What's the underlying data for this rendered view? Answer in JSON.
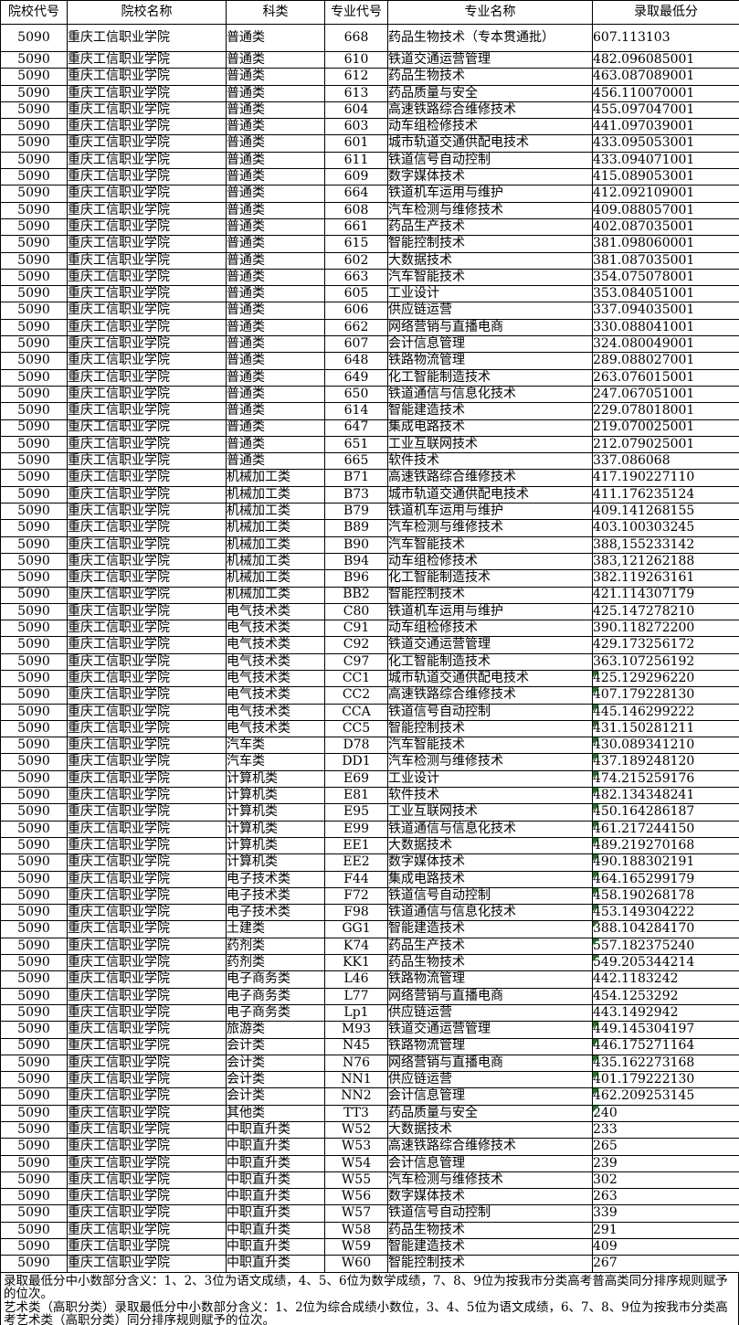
{
  "colors": {
    "grid": "#000000",
    "flag_green": "#107c10",
    "background": "#ffffff",
    "text": "#000000"
  },
  "table": {
    "headers": [
      "院校代号",
      "院校名称",
      "科类",
      "专业代号",
      "专业名称",
      "录取最低分"
    ],
    "rows": [
      {
        "code": "5090",
        "school": "重庆工信职业学院",
        "category": "普通类",
        "major_code": "668",
        "major": "药品生物技术（专本贯通批）",
        "score": "607.113103",
        "flag": false
      },
      {
        "code": "5090",
        "school": "重庆工信职业学院",
        "category": "普通类",
        "major_code": "610",
        "major": "铁道交通运营管理",
        "score": "482.096085001",
        "flag": false
      },
      {
        "code": "5090",
        "school": "重庆工信职业学院",
        "category": "普通类",
        "major_code": "612",
        "major": "药品生物技术",
        "score": "463.087089001",
        "flag": false
      },
      {
        "code": "5090",
        "school": "重庆工信职业学院",
        "category": "普通类",
        "major_code": "613",
        "major": "药品质量与安全",
        "score": "456.110070001",
        "flag": false
      },
      {
        "code": "5090",
        "school": "重庆工信职业学院",
        "category": "普通类",
        "major_code": "604",
        "major": "高速铁路综合维修技术",
        "score": "455.097047001",
        "flag": false
      },
      {
        "code": "5090",
        "school": "重庆工信职业学院",
        "category": "普通类",
        "major_code": "603",
        "major": "动车组检修技术",
        "score": "441.097039001",
        "flag": false
      },
      {
        "code": "5090",
        "school": "重庆工信职业学院",
        "category": "普通类",
        "major_code": "601",
        "major": "城市轨道交通供配电技术",
        "score": "433.095053001",
        "flag": false
      },
      {
        "code": "5090",
        "school": "重庆工信职业学院",
        "category": "普通类",
        "major_code": "611",
        "major": "铁道信号自动控制",
        "score": "433.094071001",
        "flag": false
      },
      {
        "code": "5090",
        "school": "重庆工信职业学院",
        "category": "普通类",
        "major_code": "609",
        "major": "数字媒体技术",
        "score": "415.089053001",
        "flag": false
      },
      {
        "code": "5090",
        "school": "重庆工信职业学院",
        "category": "普通类",
        "major_code": "664",
        "major": "铁道机车运用与维护",
        "score": "412.092109001",
        "flag": false
      },
      {
        "code": "5090",
        "school": "重庆工信职业学院",
        "category": "普通类",
        "major_code": "608",
        "major": "汽车检测与维修技术",
        "score": "409.088057001",
        "flag": false
      },
      {
        "code": "5090",
        "school": "重庆工信职业学院",
        "category": "普通类",
        "major_code": "661",
        "major": "药品生产技术",
        "score": "402.087035001",
        "flag": false
      },
      {
        "code": "5090",
        "school": "重庆工信职业学院",
        "category": "普通类",
        "major_code": "615",
        "major": "智能控制技术",
        "score": "381.098060001",
        "flag": false
      },
      {
        "code": "5090",
        "school": "重庆工信职业学院",
        "category": "普通类",
        "major_code": "602",
        "major": "大数据技术",
        "score": "381.087035001",
        "flag": false
      },
      {
        "code": "5090",
        "school": "重庆工信职业学院",
        "category": "普通类",
        "major_code": "663",
        "major": "汽车智能技术",
        "score": "354.075078001",
        "flag": false
      },
      {
        "code": "5090",
        "school": "重庆工信职业学院",
        "category": "普通类",
        "major_code": "605",
        "major": "工业设计",
        "score": "353.084051001",
        "flag": false
      },
      {
        "code": "5090",
        "school": "重庆工信职业学院",
        "category": "普通类",
        "major_code": "606",
        "major": "供应链运营",
        "score": "337.094035001",
        "flag": false
      },
      {
        "code": "5090",
        "school": "重庆工信职业学院",
        "category": "普通类",
        "major_code": "662",
        "major": "网络营销与直播电商",
        "score": "330.088041001",
        "flag": false
      },
      {
        "code": "5090",
        "school": "重庆工信职业学院",
        "category": "普通类",
        "major_code": "607",
        "major": "会计信息管理",
        "score": "324.080049001",
        "flag": false
      },
      {
        "code": "5090",
        "school": "重庆工信职业学院",
        "category": "普通类",
        "major_code": "648",
        "major": "铁路物流管理",
        "score": "289.088027001",
        "flag": false
      },
      {
        "code": "5090",
        "school": "重庆工信职业学院",
        "category": "普通类",
        "major_code": "649",
        "major": "化工智能制造技术",
        "score": "263.076015001",
        "flag": false
      },
      {
        "code": "5090",
        "school": "重庆工信职业学院",
        "category": "普通类",
        "major_code": "650",
        "major": "铁道通信与信息化技术",
        "score": "247.067051001",
        "flag": false
      },
      {
        "code": "5090",
        "school": "重庆工信职业学院",
        "category": "普通类",
        "major_code": "614",
        "major": "智能建造技术",
        "score": "229.078018001",
        "flag": false
      },
      {
        "code": "5090",
        "school": "重庆工信职业学院",
        "category": "普通类",
        "major_code": "647",
        "major": "集成电路技术",
        "score": "219.070025001",
        "flag": false
      },
      {
        "code": "5090",
        "school": "重庆工信职业学院",
        "category": "普通类",
        "major_code": "651",
        "major": "工业互联网技术",
        "score": "212.079025001",
        "flag": false
      },
      {
        "code": "5090",
        "school": "重庆工信职业学院",
        "category": "普通类",
        "major_code": "665",
        "major": "软件技术",
        "score": "337.086068",
        "flag": false
      },
      {
        "code": "5090",
        "school": "重庆工信职业学院",
        "category": "机械加工类",
        "major_code": "B71",
        "major": "高速铁路综合维修技术",
        "score": "417.190227110",
        "flag": false
      },
      {
        "code": "5090",
        "school": "重庆工信职业学院",
        "category": "机械加工类",
        "major_code": "B73",
        "major": "城市轨道交通供配电技术",
        "score": "411.176235124",
        "flag": false
      },
      {
        "code": "5090",
        "school": "重庆工信职业学院",
        "category": "机械加工类",
        "major_code": "B79",
        "major": "铁道机车运用与维护",
        "score": "409.141268155",
        "flag": false
      },
      {
        "code": "5090",
        "school": "重庆工信职业学院",
        "category": "机械加工类",
        "major_code": "B89",
        "major": "汽车检测与维修技术",
        "score": "403.100303245",
        "flag": false
      },
      {
        "code": "5090",
        "school": "重庆工信职业学院",
        "category": "机械加工类",
        "major_code": "B90",
        "major": "汽车智能技术",
        "score": "388,155233142",
        "flag": false
      },
      {
        "code": "5090",
        "school": "重庆工信职业学院",
        "category": "机械加工类",
        "major_code": "B94",
        "major": "动车组检修技术",
        "score": "383,121262188",
        "flag": false
      },
      {
        "code": "5090",
        "school": "重庆工信职业学院",
        "category": "机械加工类",
        "major_code": "B96",
        "major": "化工智能制造技术",
        "score": "382.119263161",
        "flag": false
      },
      {
        "code": "5090",
        "school": "重庆工信职业学院",
        "category": "机械加工类",
        "major_code": "BB2",
        "major": "智能控制技术",
        "score": "421.114307179",
        "flag": false
      },
      {
        "code": "5090",
        "school": "重庆工信职业学院",
        "category": "电气技术类",
        "major_code": "C80",
        "major": "铁道机车运用与维护",
        "score": "425.147278210",
        "flag": false
      },
      {
        "code": "5090",
        "school": "重庆工信职业学院",
        "category": "电气技术类",
        "major_code": "C91",
        "major": "动车组检修技术",
        "score": "390.118272200",
        "flag": false
      },
      {
        "code": "5090",
        "school": "重庆工信职业学院",
        "category": "电气技术类",
        "major_code": "C92",
        "major": "铁道交通运营管理",
        "score": "429.173256172",
        "flag": false
      },
      {
        "code": "5090",
        "school": "重庆工信职业学院",
        "category": "电气技术类",
        "major_code": "C97",
        "major": "化工智能制造技术",
        "score": "363.107256192",
        "flag": false
      },
      {
        "code": "5090",
        "school": "重庆工信职业学院",
        "category": "电气技术类",
        "major_code": "CC1",
        "major": "城市轨道交通供配电技术",
        "score": "425.129296220",
        "flag": true
      },
      {
        "code": "5090",
        "school": "重庆工信职业学院",
        "category": "电气技术类",
        "major_code": "CC2",
        "major": "高速铁路综合维修技术",
        "score": "407.179228130",
        "flag": true
      },
      {
        "code": "5090",
        "school": "重庆工信职业学院",
        "category": "电气技术类",
        "major_code": "CCA",
        "major": "铁道信号自动控制",
        "score": "445.146299222",
        "flag": true
      },
      {
        "code": "5090",
        "school": "重庆工信职业学院",
        "category": "电气技术类",
        "major_code": "CC5",
        "major": "智能控制技术",
        "score": "431.150281211",
        "flag": true
      },
      {
        "code": "5090",
        "school": "重庆工信职业学院",
        "category": "汽车类",
        "major_code": "D78",
        "major": "汽车智能技术",
        "score": "430.089341210",
        "flag": true
      },
      {
        "code": "5090",
        "school": "重庆工信职业学院",
        "category": "汽车类",
        "major_code": "DD1",
        "major": "汽车检测与维修技术",
        "score": "437.189248120",
        "flag": true
      },
      {
        "code": "5090",
        "school": "重庆工信职业学院",
        "category": "计算机类",
        "major_code": "E69",
        "major": "工业设计",
        "score": "474.215259176",
        "flag": true
      },
      {
        "code": "5090",
        "school": "重庆工信职业学院",
        "category": "计算机类",
        "major_code": "E81",
        "major": "软件技术",
        "score": "482.134348241",
        "flag": true
      },
      {
        "code": "5090",
        "school": "重庆工信职业学院",
        "category": "计算机类",
        "major_code": "E95",
        "major": "工业互联网技术",
        "score": "450.164286187",
        "flag": true
      },
      {
        "code": "5090",
        "school": "重庆工信职业学院",
        "category": "计算机类",
        "major_code": "E99",
        "major": "铁道通信与信息化技术",
        "score": "461.217244150",
        "flag": true
      },
      {
        "code": "5090",
        "school": "重庆工信职业学院",
        "category": "计算机类",
        "major_code": "EE1",
        "major": "大数据技术",
        "score": "489.219270168",
        "flag": true
      },
      {
        "code": "5090",
        "school": "重庆工信职业学院",
        "category": "计算机类",
        "major_code": "EE2",
        "major": "数字媒体技术",
        "score": "490.188302191",
        "flag": true
      },
      {
        "code": "5090",
        "school": "重庆工信职业学院",
        "category": "电子技术类",
        "major_code": "F44",
        "major": "集成电路技术",
        "score": "464.165299179",
        "flag": true
      },
      {
        "code": "5090",
        "school": "重庆工信职业学院",
        "category": "电子技术类",
        "major_code": "F72",
        "major": "铁道信号自动控制",
        "score": "458.190268178",
        "flag": true
      },
      {
        "code": "5090",
        "school": "重庆工信职业学院",
        "category": "电子技术类",
        "major_code": "F98",
        "major": "铁道通信与信息化技术",
        "score": "453.149304222",
        "flag": true
      },
      {
        "code": "5090",
        "school": "重庆工信职业学院",
        "category": "土建类",
        "major_code": "GG1",
        "major": "智能建造技术",
        "score": "388.104284170",
        "flag": true
      },
      {
        "code": "5090",
        "school": "重庆工信职业学院",
        "category": "药剂类",
        "major_code": "K74",
        "major": "药品生产技术",
        "score": "557.182375240",
        "flag": true
      },
      {
        "code": "5090",
        "school": "重庆工信职业学院",
        "category": "药剂类",
        "major_code": "KK1",
        "major": "药品生物技术",
        "score": "549.205344214",
        "flag": true
      },
      {
        "code": "5090",
        "school": "重庆工信职业学院",
        "category": "电子商务类",
        "major_code": "L46",
        "major": "铁路物流管理",
        "score": "442.1183242",
        "flag": false
      },
      {
        "code": "5090",
        "school": "重庆工信职业学院",
        "category": "电子商务类",
        "major_code": "L77",
        "major": "网络营销与直播电商",
        "score": "454.1253292",
        "flag": false
      },
      {
        "code": "5090",
        "school": "重庆工信职业学院",
        "category": "电子商务类",
        "major_code": "Lp1",
        "major": "供应链运营",
        "score": "443.1492942",
        "flag": false
      },
      {
        "code": "5090",
        "school": "重庆工信职业学院",
        "category": "旅游类",
        "major_code": "M93",
        "major": "铁道交通运营管理",
        "score": "449.145304197",
        "flag": true
      },
      {
        "code": "5090",
        "school": "重庆工信职业学院",
        "category": "会计类",
        "major_code": "N45",
        "major": "铁路物流管理",
        "score": "446.175271164",
        "flag": true
      },
      {
        "code": "5090",
        "school": "重庆工信职业学院",
        "category": "会计类",
        "major_code": "N76",
        "major": "网络营销与直播电商",
        "score": "435.162273168",
        "flag": true
      },
      {
        "code": "5090",
        "school": "重庆工信职业学院",
        "category": "会计类",
        "major_code": "NN1",
        "major": "供应链运营",
        "score": "401.179222130",
        "flag": true
      },
      {
        "code": "5090",
        "school": "重庆工信职业学院",
        "category": "会计类",
        "major_code": "NN2",
        "major": "会计信息管理",
        "score": "462.209253145",
        "flag": true
      },
      {
        "code": "5090",
        "school": "重庆工信职业学院",
        "category": "其他类",
        "major_code": "TT3",
        "major": "药品质量与安全",
        "score": "240",
        "flag": true
      },
      {
        "code": "5090",
        "school": "重庆工信职业学院",
        "category": "中职直升类",
        "major_code": "W52",
        "major": "大数据技术",
        "score": "233",
        "flag": false
      },
      {
        "code": "5090",
        "school": "重庆工信职业学院",
        "category": "中职直升类",
        "major_code": "W53",
        "major": "高速铁路综合维修技术",
        "score": "265",
        "flag": false
      },
      {
        "code": "5090",
        "school": "重庆工信职业学院",
        "category": "中职直升类",
        "major_code": "W54",
        "major": "会计信息管理",
        "score": "239",
        "flag": false
      },
      {
        "code": "5090",
        "school": "重庆工信职业学院",
        "category": "中职直升类",
        "major_code": "W55",
        "major": "汽车检测与维修技术",
        "score": "302",
        "flag": false
      },
      {
        "code": "5090",
        "school": "重庆工信职业学院",
        "category": "中职直升类",
        "major_code": "W56",
        "major": "数字媒体技术",
        "score": "263",
        "flag": false
      },
      {
        "code": "5090",
        "school": "重庆工信职业学院",
        "category": "中职直升类",
        "major_code": "W57",
        "major": "铁道信号自动控制",
        "score": "339",
        "flag": false
      },
      {
        "code": "5090",
        "school": "重庆工信职业学院",
        "category": "中职直升类",
        "major_code": "W58",
        "major": "药品生物技术",
        "score": "291",
        "flag": false
      },
      {
        "code": "5090",
        "school": "重庆工信职业学院",
        "category": "中职直升类",
        "major_code": "W59",
        "major": "智能建造技术",
        "score": "409",
        "flag": false
      },
      {
        "code": "5090",
        "school": "重庆工信职业学院",
        "category": "中职直升类",
        "major_code": "W60",
        "major": "智能控制技术",
        "score": "267",
        "flag": false
      }
    ]
  },
  "footnotes": [
    "录取最低分中小数部分含义：1、2、3位为语文成绩，4、5、6位为数学成绩，7、8、9位为按我市分类高考普高类同分排序规则赋予的位次。",
    "艺术类（高职分类）录取最低分中小数部分含义：1、2位为综合成绩小数位，3、4、5位为语文成绩，6、7、8、9位为按我市分类高考艺术类（高职分类）同分排序规则赋予的位次。"
  ]
}
